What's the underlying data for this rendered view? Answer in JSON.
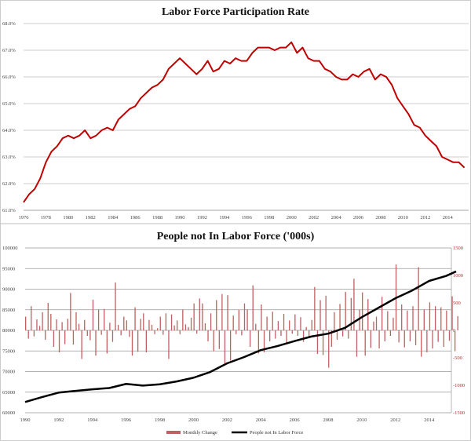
{
  "chart_data": [
    {
      "type": "line",
      "title": "Labor Force Participation Rate",
      "ylim": [
        61.0,
        68.0
      ],
      "yticks": [
        "68.0%",
        "67.0%",
        "66.0%",
        "65.0%",
        "64.0%",
        "63.0%",
        "62.0%",
        "61.0%"
      ],
      "xticks": [
        "1976",
        "1978",
        "1980",
        "1982",
        "1984",
        "1986",
        "1988",
        "1990",
        "1992",
        "1994",
        "1996",
        "1998",
        "2000",
        "2002",
        "2004",
        "2006",
        "2008",
        "2010",
        "2012",
        "2014"
      ],
      "xlim": [
        1976,
        2015.6
      ],
      "color": "#c00000",
      "grid": true,
      "series": [
        {
          "name": "Participation Rate",
          "x_start": 1976,
          "x_step": 0.5,
          "values": [
            61.3,
            61.6,
            61.8,
            62.2,
            62.8,
            63.2,
            63.4,
            63.7,
            63.8,
            63.7,
            63.8,
            64.0,
            63.7,
            63.8,
            64.0,
            64.1,
            64.0,
            64.4,
            64.6,
            64.8,
            64.9,
            65.2,
            65.4,
            65.6,
            65.7,
            65.9,
            66.3,
            66.5,
            66.7,
            66.5,
            66.3,
            66.1,
            66.3,
            66.6,
            66.2,
            66.3,
            66.6,
            66.5,
            66.7,
            66.6,
            66.6,
            66.9,
            67.1,
            67.1,
            67.1,
            67.0,
            67.1,
            67.1,
            67.3,
            66.9,
            67.1,
            66.7,
            66.6,
            66.6,
            66.3,
            66.2,
            66.0,
            65.9,
            65.9,
            66.1,
            66.0,
            66.2,
            66.3,
            65.9,
            66.1,
            66.0,
            65.7,
            65.2,
            64.9,
            64.6,
            64.2,
            64.1,
            63.8,
            63.6,
            63.4,
            63.0,
            62.9,
            62.8,
            62.8,
            62.6
          ]
        }
      ]
    },
    {
      "type": "bar+line",
      "title": "People not In Labor Force ('000s)",
      "ylim": [
        60000,
        100000
      ],
      "y2lim": [
        -1500,
        1500
      ],
      "yticks": [
        "100000",
        "95000",
        "90000",
        "85000",
        "80000",
        "75000",
        "70000",
        "65000",
        "60000"
      ],
      "y2ticks": [
        "1500",
        "1000",
        "500",
        "0",
        "-500",
        "-1000",
        "-1500"
      ],
      "xticks": [
        "1990",
        "1992",
        "1994",
        "1996",
        "1998",
        "2000",
        "2002",
        "2004",
        "2006",
        "2008",
        "2010",
        "2012",
        "2014"
      ],
      "xlim": [
        1990,
        2015.6
      ],
      "grid": true,
      "legend": "bottom",
      "legend_labels": [
        "Monthly Change",
        "People not In Labor Force"
      ],
      "series": [
        {
          "name": "People not In Labor Force",
          "axis": "left",
          "color": "#000000",
          "x": [
            1990,
            1991,
            1992,
            1993,
            1994,
            1995,
            1996,
            1997,
            1998,
            1999,
            2000,
            2001,
            2002,
            2003,
            2004,
            2005,
            2006,
            2007,
            2008,
            2009,
            2010,
            2011,
            2012,
            2013,
            2014,
            2015,
            2015.6
          ],
          "values": [
            62600,
            63800,
            64900,
            65300,
            65700,
            66000,
            67000,
            66600,
            66900,
            67600,
            68500,
            69900,
            72000,
            73500,
            75200,
            76200,
            77400,
            78500,
            79200,
            80600,
            83200,
            85500,
            87800,
            89700,
            92000,
            93200,
            94300
          ]
        },
        {
          "name": "Monthly Change",
          "axis": "right",
          "color": "#c06060",
          "x_start": 1990,
          "x_step": 0.1667,
          "values": [
            250,
            -150,
            440,
            -110,
            200,
            80,
            330,
            -170,
            500,
            300,
            -300,
            200,
            -400,
            150,
            -250,
            210,
            680,
            -260,
            330,
            120,
            -520,
            190,
            -100,
            -180,
            560,
            -460,
            380,
            -80,
            390,
            -420,
            140,
            -210,
            870,
            100,
            -90,
            250,
            180,
            -120,
            -460,
            420,
            -390,
            210,
            310,
            -400,
            190,
            100,
            -70,
            40,
            250,
            -80,
            310,
            -520,
            290,
            90,
            180,
            -70,
            380,
            110,
            60,
            230,
            490,
            -60,
            580,
            490,
            130,
            -200,
            310,
            -380,
            550,
            -340,
            660,
            -600,
            640,
            -550,
            270,
            -70,
            370,
            -90,
            490,
            380,
            -300,
            820,
            120,
            -420,
            470,
            -400,
            250,
            -200,
            340,
            -150,
            170,
            -100,
            300,
            -230,
            180,
            -60,
            290,
            -100,
            240,
            -210,
            60,
            -120,
            190,
            790,
            -430,
            550,
            -450,
            630,
            -680,
            -300,
            330,
            -170,
            480,
            -110,
            700,
            -150,
            590,
            940,
            -480,
            380,
            690,
            -460,
            570,
            -320,
            160,
            250,
            -330,
            610,
            -200,
            350,
            -100,
            230,
            1200,
            -220,
            470,
            -310,
            360,
            -200,
            440,
            -270,
            1150,
            -480,
            380,
            -400,
            510,
            -330,
            440,
            -210,
            420,
            -300,
            360,
            -190,
            620,
            -380,
            260
          ]
        }
      ]
    }
  ]
}
